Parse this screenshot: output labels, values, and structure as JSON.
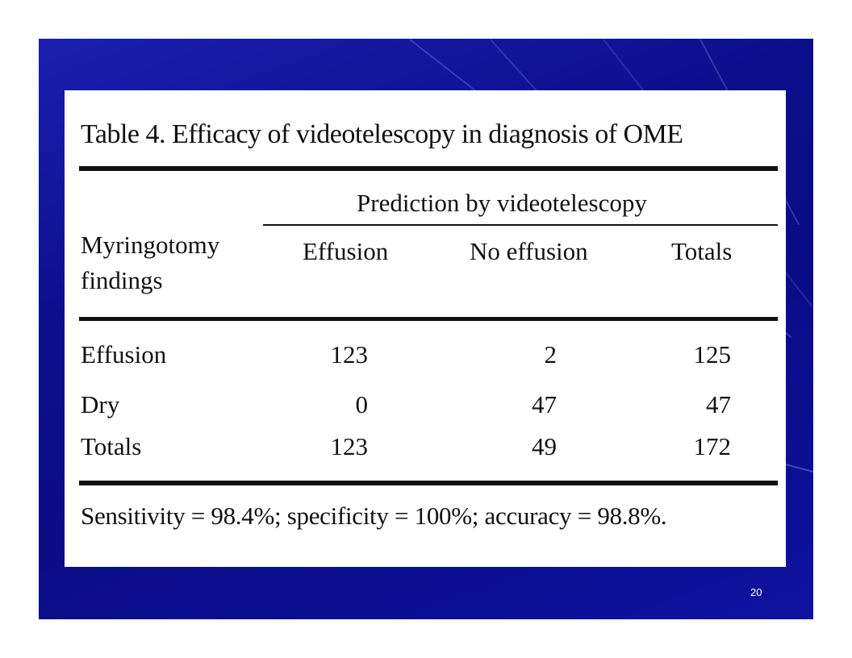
{
  "slide": {
    "page_number": "20",
    "background_color": "#0b0e8a"
  },
  "table": {
    "title": "Table 4. Efficacy of videotelescopy in diagnosis of OME",
    "group_header": "Prediction by videotelescopy",
    "row_header": "Myringotomy findings",
    "columns": [
      "Effusion",
      "No effusion",
      "Totals"
    ],
    "rows": [
      {
        "label": "Effusion",
        "values": [
          "123",
          "2",
          "125"
        ]
      },
      {
        "label": "Dry",
        "values": [
          "0",
          "47",
          "47"
        ]
      },
      {
        "label": "Totals",
        "values": [
          "123",
          "49",
          "172"
        ]
      }
    ],
    "footnote": "Sensitivity = 98.4%; specificity = 100%; accuracy = 98.8%."
  }
}
